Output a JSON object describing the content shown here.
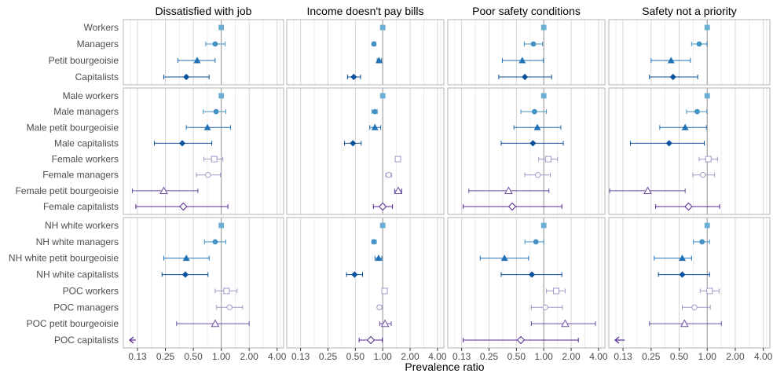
{
  "chart_data": {
    "type": "forest-plot",
    "xlabel": "Prevalence ratio",
    "x_scale": "log2",
    "xlim": [
      0.088,
      4.7
    ],
    "x_ticks": [
      0.125,
      0.25,
      0.5,
      1,
      2,
      4
    ],
    "x_tick_labels": [
      "0.13",
      "0.25",
      "0.50",
      "1.00",
      "2.00",
      "4.00"
    ],
    "reference_line": 1,
    "grid": true,
    "colors": {
      "Workers": "#6baed6",
      "Managers": "#4292c6",
      "Petit bourgeoisie": "#2171b5",
      "Capitalists": "#08519c",
      "Female workers": "#9e9ac8",
      "Female managers": "#9e9ac8",
      "Female petit bourgeoisie": "#6a51a3",
      "Female capitalists": "#54278f"
    },
    "columns": [
      "Dissatisfied with job",
      "Income doesn't pay bills",
      "Poor safety conditions",
      "Safety not a priority"
    ],
    "rows": [
      {
        "labels": [
          "Workers",
          "Managers",
          "Petit bourgeoisie",
          "Capitalists"
        ],
        "shapes": [
          "square",
          "circle",
          "triangle",
          "diamond"
        ],
        "fill": [
          "solid",
          "solid",
          "solid",
          "solid"
        ],
        "color_keys": [
          "Workers",
          "Managers",
          "Petit bourgeoisie",
          "Capitalists"
        ],
        "estimates": [
          [
            [
              1.0,
              1.0,
              1.0
            ],
            [
              0.86,
              0.68,
              1.1
            ],
            [
              0.55,
              0.34,
              0.86
            ],
            [
              0.42,
              0.24,
              0.74
            ]
          ],
          [
            [
              1.0,
              1.0,
              1.0
            ],
            [
              0.8,
              0.77,
              0.84
            ],
            [
              0.91,
              0.87,
              0.97
            ],
            [
              0.48,
              0.41,
              0.57
            ]
          ],
          [
            [
              1.0,
              1.0,
              1.0
            ],
            [
              0.77,
              0.61,
              0.97
            ],
            [
              0.58,
              0.35,
              0.99
            ],
            [
              0.62,
              0.32,
              1.22
            ]
          ],
          [
            [
              1.0,
              1.0,
              1.0
            ],
            [
              0.82,
              0.68,
              0.99
            ],
            [
              0.41,
              0.25,
              0.66
            ],
            [
              0.43,
              0.24,
              0.79
            ]
          ]
        ]
      },
      {
        "labels": [
          "Male workers",
          "Male managers",
          "Male petit bourgeoisie",
          "Male capitalists",
          "Female workers",
          "Female managers",
          "Female petit bourgeoisie",
          "Female capitalists"
        ],
        "shapes": [
          "square",
          "circle",
          "triangle",
          "diamond",
          "square",
          "circle",
          "triangle",
          "diamond"
        ],
        "fill": [
          "solid",
          "solid",
          "solid",
          "solid",
          "open",
          "open",
          "open",
          "open"
        ],
        "color_keys": [
          "Workers",
          "Managers",
          "Petit bourgeoisie",
          "Capitalists",
          "Female workers",
          "Female managers",
          "Female petit bourgeoisie",
          "Female capitalists"
        ],
        "estimates": [
          [
            [
              1.0,
              1.0,
              1.0
            ],
            [
              0.88,
              0.64,
              1.12
            ],
            [
              0.71,
              0.42,
              1.26
            ],
            [
              0.38,
              0.19,
              0.79
            ],
            [
              0.84,
              0.65,
              1.04
            ],
            [
              0.72,
              0.54,
              0.98
            ],
            [
              0.24,
              0.11,
              0.56
            ],
            [
              0.39,
              0.12,
              1.18
            ]
          ],
          [
            [
              1.0,
              1.0,
              1.0
            ],
            [
              0.82,
              0.76,
              0.87
            ],
            [
              0.82,
              0.72,
              0.95
            ],
            [
              0.47,
              0.38,
              0.58
            ],
            [
              1.47,
              1.43,
              1.51
            ],
            [
              1.16,
              1.08,
              1.25
            ],
            [
              1.48,
              1.35,
              1.62
            ],
            [
              1.0,
              0.79,
              1.28
            ]
          ],
          [
            [
              1.0,
              1.0,
              1.0
            ],
            [
              0.79,
              0.56,
              1.07
            ],
            [
              0.85,
              0.47,
              1.54
            ],
            [
              0.76,
              0.34,
              1.64
            ],
            [
              1.12,
              0.88,
              1.42
            ],
            [
              0.86,
              0.62,
              1.18
            ],
            [
              0.41,
              0.15,
              1.14
            ],
            [
              0.45,
              0.13,
              1.58
            ]
          ],
          [
            [
              1.0,
              1.0,
              1.0
            ],
            [
              0.78,
              0.6,
              0.99
            ],
            [
              0.58,
              0.31,
              0.98
            ],
            [
              0.39,
              0.15,
              0.93
            ],
            [
              1.03,
              0.82,
              1.29
            ],
            [
              0.9,
              0.7,
              1.2
            ],
            [
              0.23,
              0.09,
              0.58
            ],
            [
              0.63,
              0.28,
              1.36
            ]
          ]
        ]
      },
      {
        "labels": [
          "NH white workers",
          "NH white managers",
          "NH white petit bourgeoisie",
          "NH white capitalists",
          "POC workers",
          "POC managers",
          "POC petit bourgeoisie",
          "POC capitalists"
        ],
        "shapes": [
          "square",
          "circle",
          "triangle",
          "diamond",
          "square",
          "circle",
          "triangle",
          "diamond"
        ],
        "fill": [
          "solid",
          "solid",
          "solid",
          "solid",
          "open",
          "open",
          "open",
          "open"
        ],
        "color_keys": [
          "Workers",
          "Managers",
          "Petit bourgeoisie",
          "Capitalists",
          "Female workers",
          "Female managers",
          "Female petit bourgeoisie",
          "Female capitalists"
        ],
        "estimates": [
          [
            [
              1.0,
              1.0,
              1.0
            ],
            [
              0.86,
              0.66,
              1.12
            ],
            [
              0.42,
              0.24,
              0.74
            ],
            [
              0.41,
              0.23,
              0.72
            ],
            [
              1.14,
              0.86,
              1.48
            ],
            [
              1.23,
              0.89,
              1.7
            ],
            [
              0.86,
              0.33,
              2.0
            ],
            [
              null,
              null,
              0.12
            ]
          ],
          [
            [
              1.0,
              1.0,
              1.0
            ],
            [
              0.8,
              0.76,
              0.85
            ],
            [
              0.9,
              0.82,
              0.98
            ],
            [
              0.49,
              0.4,
              0.6
            ],
            [
              1.05,
              1.02,
              1.08
            ],
            [
              0.92,
              0.88,
              0.98
            ],
            [
              1.06,
              0.93,
              1.24
            ],
            [
              0.74,
              0.55,
              0.99
            ]
          ],
          [
            [
              1.0,
              1.0,
              1.0
            ],
            [
              0.82,
              0.62,
              1.0
            ],
            [
              0.37,
              0.2,
              0.68
            ],
            [
              0.74,
              0.34,
              1.58
            ],
            [
              1.37,
              1.07,
              1.72
            ],
            [
              1.04,
              0.73,
              1.6
            ],
            [
              1.72,
              0.73,
              3.7
            ],
            [
              0.56,
              0.13,
              2.4
            ]
          ],
          [
            [
              1.0,
              1.0,
              1.0
            ],
            [
              0.88,
              0.71,
              1.06
            ],
            [
              0.54,
              0.27,
              0.68
            ],
            [
              0.54,
              0.3,
              1.06
            ],
            [
              1.06,
              0.84,
              1.34
            ],
            [
              0.73,
              0.54,
              1.08
            ],
            [
              0.57,
              0.24,
              1.42
            ],
            [
              null,
              null,
              0.13
            ]
          ]
        ]
      }
    ]
  }
}
